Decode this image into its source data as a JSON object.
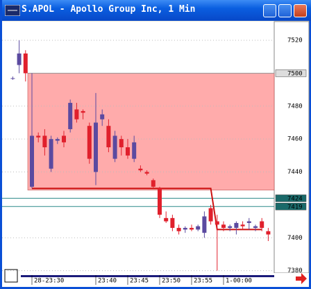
{
  "chart_data": {
    "type": "candlestick",
    "title": "S.APOL - Apollo Group Inc, 1 Min",
    "categories": [
      null,
      null,
      null,
      "28-23:30",
      null,
      null,
      null,
      null,
      null,
      null,
      null,
      null,
      null,
      "23:40",
      null,
      null,
      null,
      null,
      "23:45",
      null,
      null,
      null,
      null,
      "23:50",
      null,
      null,
      null,
      null,
      "23:55",
      null,
      null,
      null,
      null,
      "1-00:00",
      null,
      null,
      null,
      null,
      null,
      null,
      null
    ],
    "ohlc": [
      [
        7497,
        7498,
        7496,
        7497
      ],
      [
        7505,
        7520,
        7500,
        7512
      ],
      [
        7512,
        7514,
        7495,
        7500
      ],
      [
        7431,
        7500,
        7430,
        7462
      ],
      [
        7462,
        7464,
        7458,
        7461
      ],
      [
        7462,
        7466,
        7450,
        7455
      ],
      [
        7442,
        7462,
        7440,
        7460
      ],
      [
        7459,
        7461,
        7457,
        7460
      ],
      [
        7462,
        7465,
        7455,
        7458
      ],
      [
        7466,
        7484,
        7464,
        7482
      ],
      [
        7478,
        7482,
        7470,
        7472
      ],
      [
        7477,
        7478,
        7472,
        7476
      ],
      [
        7468,
        7470,
        7445,
        7448
      ],
      [
        7440,
        7488,
        7432,
        7470
      ],
      [
        7472,
        7478,
        7468,
        7475
      ],
      [
        7468,
        7472,
        7452,
        7455
      ],
      [
        7448,
        7465,
        7446,
        7462
      ],
      [
        7460,
        7462,
        7450,
        7455
      ],
      [
        7455,
        7460,
        7448,
        7450
      ],
      [
        7448,
        7462,
        7446,
        7458
      ],
      [
        7442,
        7444,
        7440,
        7441
      ],
      [
        7440,
        7441,
        7438,
        7439
      ],
      [
        7435,
        7436,
        7430,
        7431
      ],
      [
        7430,
        7431,
        7412,
        7414
      ],
      [
        7412,
        7416,
        7409,
        7410
      ],
      [
        7412,
        7414,
        7404,
        7406
      ],
      [
        7406,
        7408,
        7402,
        7404
      ],
      [
        7405,
        7407,
        7403,
        7406
      ],
      [
        7406,
        7408,
        7404,
        7405
      ],
      [
        7405,
        7408,
        7404,
        7407
      ],
      [
        7403,
        7416,
        7400,
        7413
      ],
      [
        7418,
        7420,
        7408,
        7410
      ],
      [
        7410,
        7414,
        7380,
        7408
      ],
      [
        7408,
        7410,
        7404,
        7406
      ],
      [
        7406,
        7408,
        7404,
        7407
      ],
      [
        7406,
        7410,
        7402,
        7409
      ],
      [
        7408,
        7410,
        7405,
        7407
      ],
      [
        7409,
        7412,
        7405,
        7410
      ],
      [
        7406,
        7408,
        7404,
        7407
      ],
      [
        7410,
        7412,
        7404,
        7406
      ],
      [
        7404,
        7406,
        7398,
        7402
      ]
    ],
    "up_color": "#5b4aa0",
    "down_color": "#e0202c",
    "ylim": [
      7379,
      7531
    ],
    "yticks": [
      7380,
      7400,
      7440,
      7460,
      7480,
      7520
    ],
    "grid": true,
    "zone": [
      7500,
      7429
    ],
    "zone_color": "#ff9c9c",
    "price_lines": [
      7500,
      7424,
      7419
    ],
    "red_line": {
      "color": "#cc1010",
      "values": [
        null,
        null,
        null,
        7430,
        7430,
        7430,
        7430,
        7430,
        7430,
        7430,
        7430,
        7430,
        7430,
        7430,
        7430,
        7430,
        7430,
        7430,
        7430,
        7430,
        7430,
        7430,
        7430,
        7430,
        7430,
        7430,
        7430,
        7430,
        7430,
        7430,
        7430,
        7430,
        7405,
        7405,
        7405,
        7405,
        7405,
        7405,
        7405,
        7405,
        null
      ]
    }
  }
}
